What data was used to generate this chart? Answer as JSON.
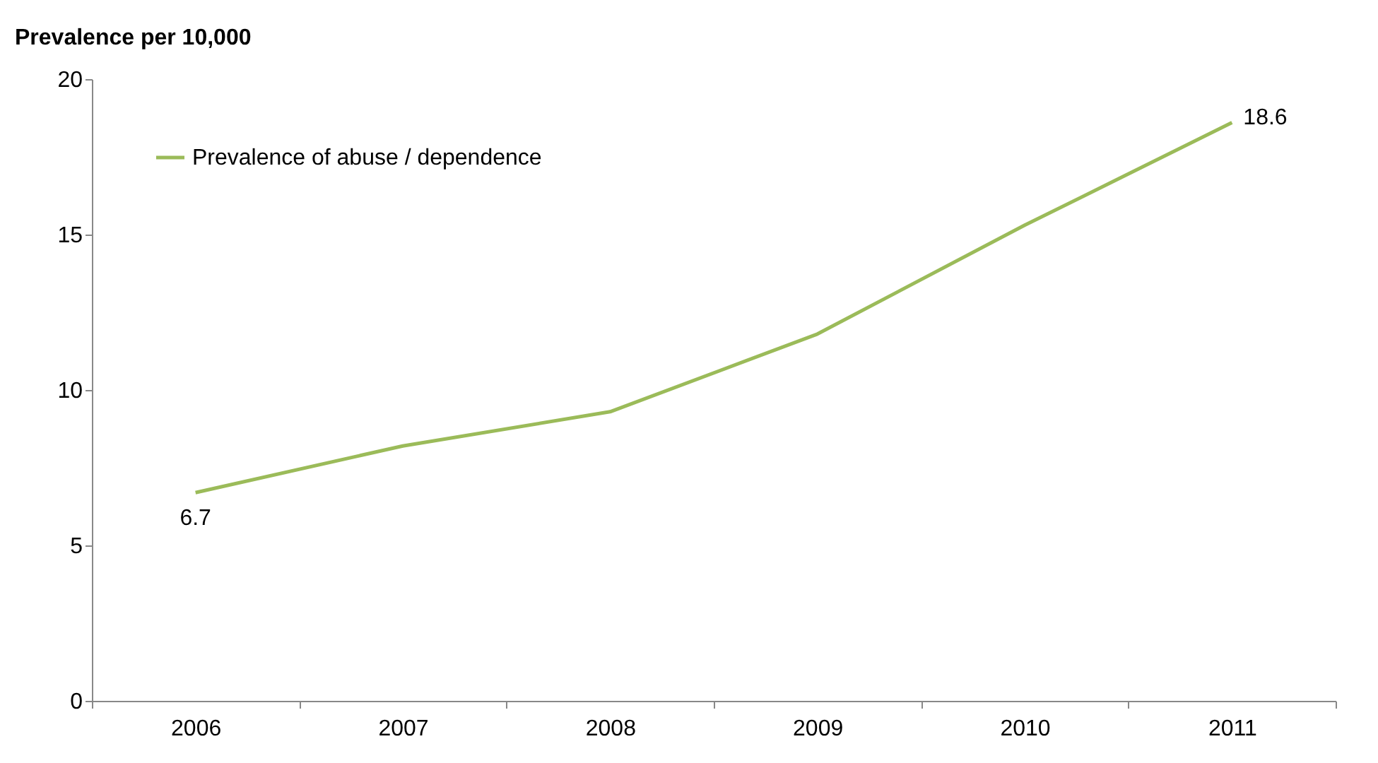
{
  "chart_data": {
    "type": "line",
    "ylabel": "Prevalence per 10,000",
    "categories": [
      "2006",
      "2007",
      "2008",
      "2009",
      "2010",
      "2011"
    ],
    "series": [
      {
        "name": "Prevalence of abuse / dependence",
        "color": "#9bbb59",
        "values": [
          6.7,
          8.2,
          9.3,
          11.8,
          15.3,
          18.6
        ],
        "value_labels": [
          "6.7",
          null,
          null,
          null,
          null,
          "18.6"
        ]
      }
    ],
    "ylim": [
      0,
      20
    ],
    "yticks": [
      0,
      5,
      10,
      15,
      20
    ],
    "grid": false,
    "legend": "top left",
    "marker": "none",
    "line_style": "solid"
  }
}
